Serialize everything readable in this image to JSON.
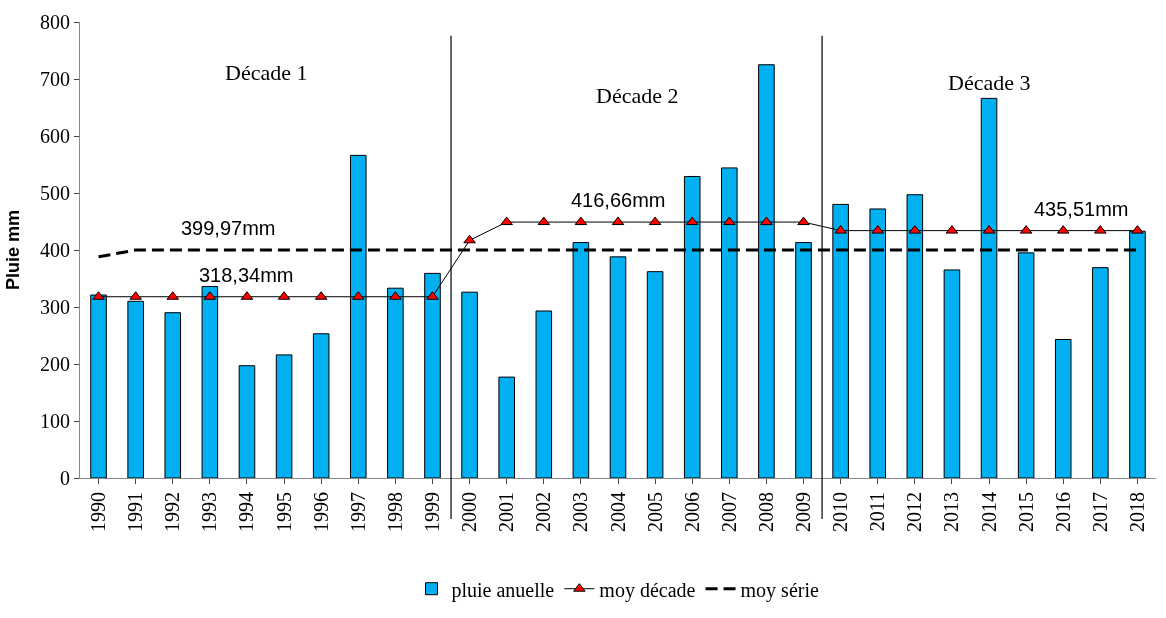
{
  "chart_data": {
    "type": "bar",
    "ylabel": "Pluie mm",
    "x": [
      1990,
      1991,
      1992,
      1993,
      1994,
      1995,
      1996,
      1997,
      1998,
      1999,
      2000,
      2001,
      2002,
      2003,
      2004,
      2005,
      2006,
      2007,
      2008,
      2009,
      2010,
      2011,
      2012,
      2013,
      2014,
      2015,
      2016,
      2017,
      2018
    ],
    "xlim": [
      1989.5,
      2018.5
    ],
    "xticks": [
      1990,
      1991,
      1992,
      1993,
      1994,
      1995,
      1996,
      1997,
      1998,
      1999,
      2000,
      2001,
      2002,
      2003,
      2004,
      2005,
      2006,
      2007,
      2008,
      2009,
      2010,
      2011,
      2012,
      2013,
      2014,
      2015,
      2016,
      2017,
      2018
    ],
    "ylim": [
      0,
      800
    ],
    "yticks": [
      0,
      100,
      200,
      300,
      400,
      500,
      600,
      700,
      800
    ],
    "legend": "bottom",
    "series": [
      {
        "name": "pluie anuelle",
        "color": "#00b0f0",
        "values": [
          321,
          310,
          290,
          336,
          197,
          216,
          253,
          566,
          333,
          359,
          326,
          177,
          293,
          413,
          388,
          362,
          529,
          544,
          725,
          413,
          480,
          472,
          497,
          365,
          666,
          395,
          243,
          369,
          433
        ]
      },
      {
        "name": "moy décade",
        "type": "line",
        "color": "#ff0000",
        "marker": "triangle",
        "line_style": "solid",
        "values": [
          318,
          318,
          318,
          318,
          318,
          318,
          318,
          318,
          318,
          318,
          417,
          449,
          449,
          449,
          449,
          449,
          449,
          449,
          449,
          449,
          434,
          434,
          434,
          434,
          434,
          434,
          434,
          434,
          434
        ]
      },
      {
        "name": "moy série",
        "type": "line",
        "color": "#000000",
        "marker": "none",
        "line_style": "dashed",
        "values": [
          388,
          400,
          400,
          400,
          400,
          400,
          400,
          400,
          400,
          400,
          400,
          400,
          400,
          400,
          400,
          400,
          400,
          400,
          400,
          400,
          400,
          400,
          400,
          400,
          400,
          400,
          400,
          400,
          400
        ]
      }
    ],
    "ref_lines": [
      {
        "axis": "x",
        "value": 1999.5,
        "color": "#000000"
      },
      {
        "axis": "x",
        "value": 2009.5,
        "color": "#000000"
      }
    ],
    "annotations": [
      "Décade 1",
      "Décade 2",
      "Décade 3",
      {
        "text": "399,97mm",
        "x": 1993.5,
        "y": 400
      },
      {
        "text": "318,34mm",
        "x": 1994,
        "y": 318
      },
      {
        "text": "416,66mm",
        "x": 2004,
        "y": 449
      },
      {
        "text": "435,51mm",
        "x": 2016.5,
        "y": 434
      }
    ]
  }
}
